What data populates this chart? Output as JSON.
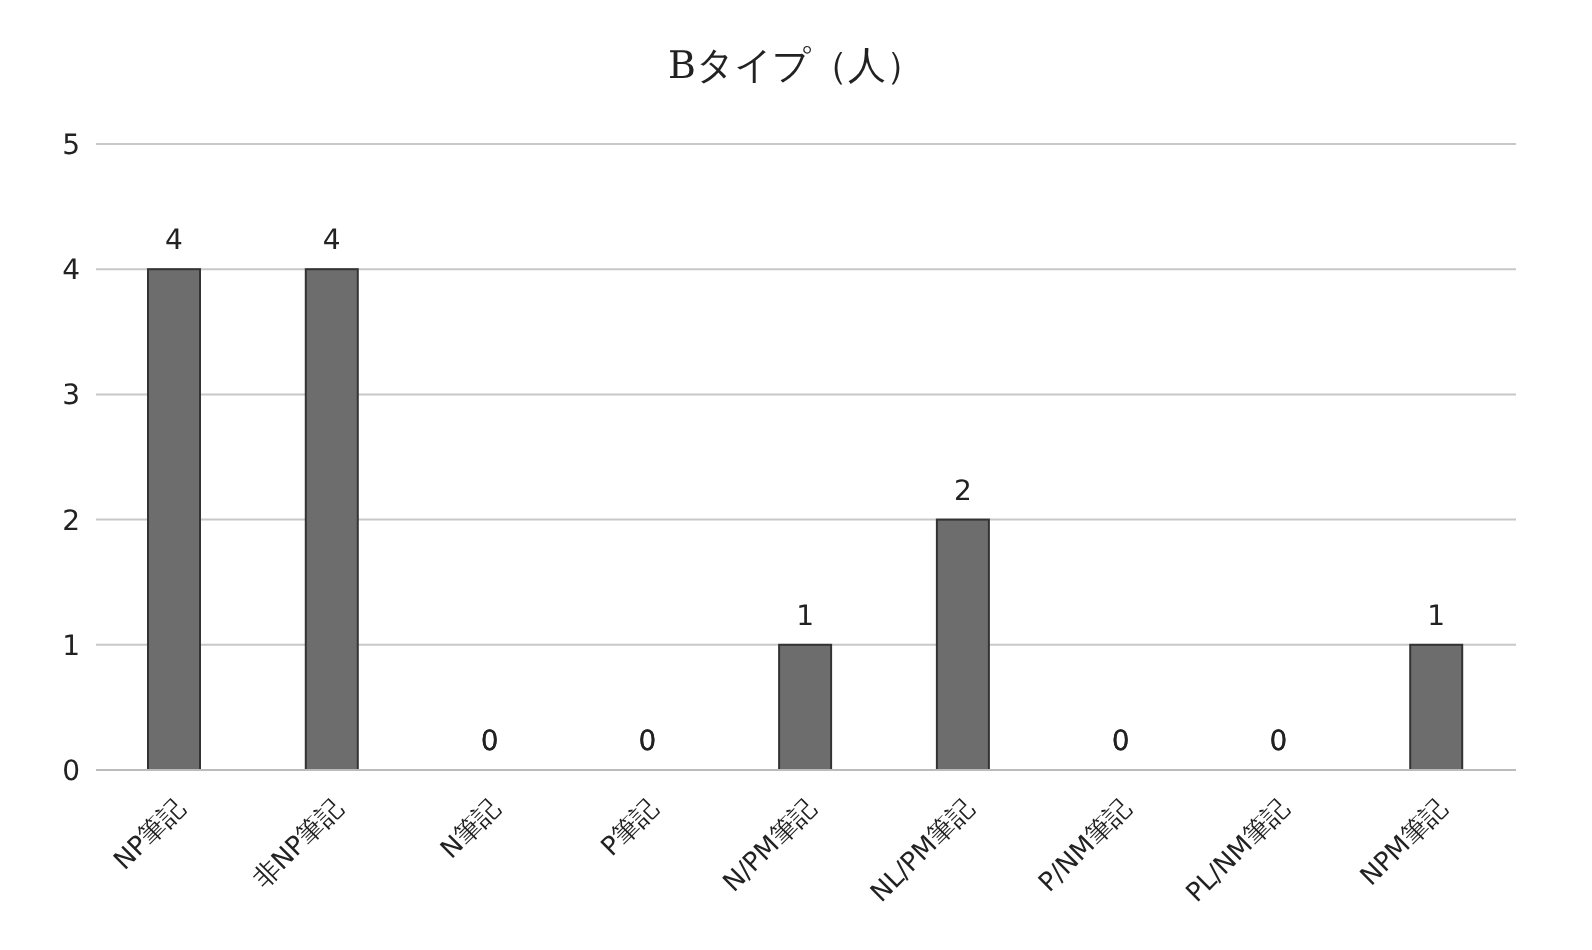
{
  "chart_data": {
    "type": "bar",
    "title": "Bタイプ（人）",
    "categories": [
      "NP筆記",
      "非NP筆記",
      "N筆記",
      "P筆記",
      "N/PM筆記",
      "NL/PM筆記",
      "P/NM筆記",
      "PL/NM筆記",
      "NPM筆記"
    ],
    "values": [
      4,
      4,
      0,
      0,
      1,
      2,
      0,
      0,
      1
    ],
    "color": "#6d6d6d",
    "ylim": [
      0,
      5
    ],
    "yticks": [
      0,
      1,
      2,
      3,
      4,
      5
    ],
    "grid": "y",
    "data_labels": true
  }
}
